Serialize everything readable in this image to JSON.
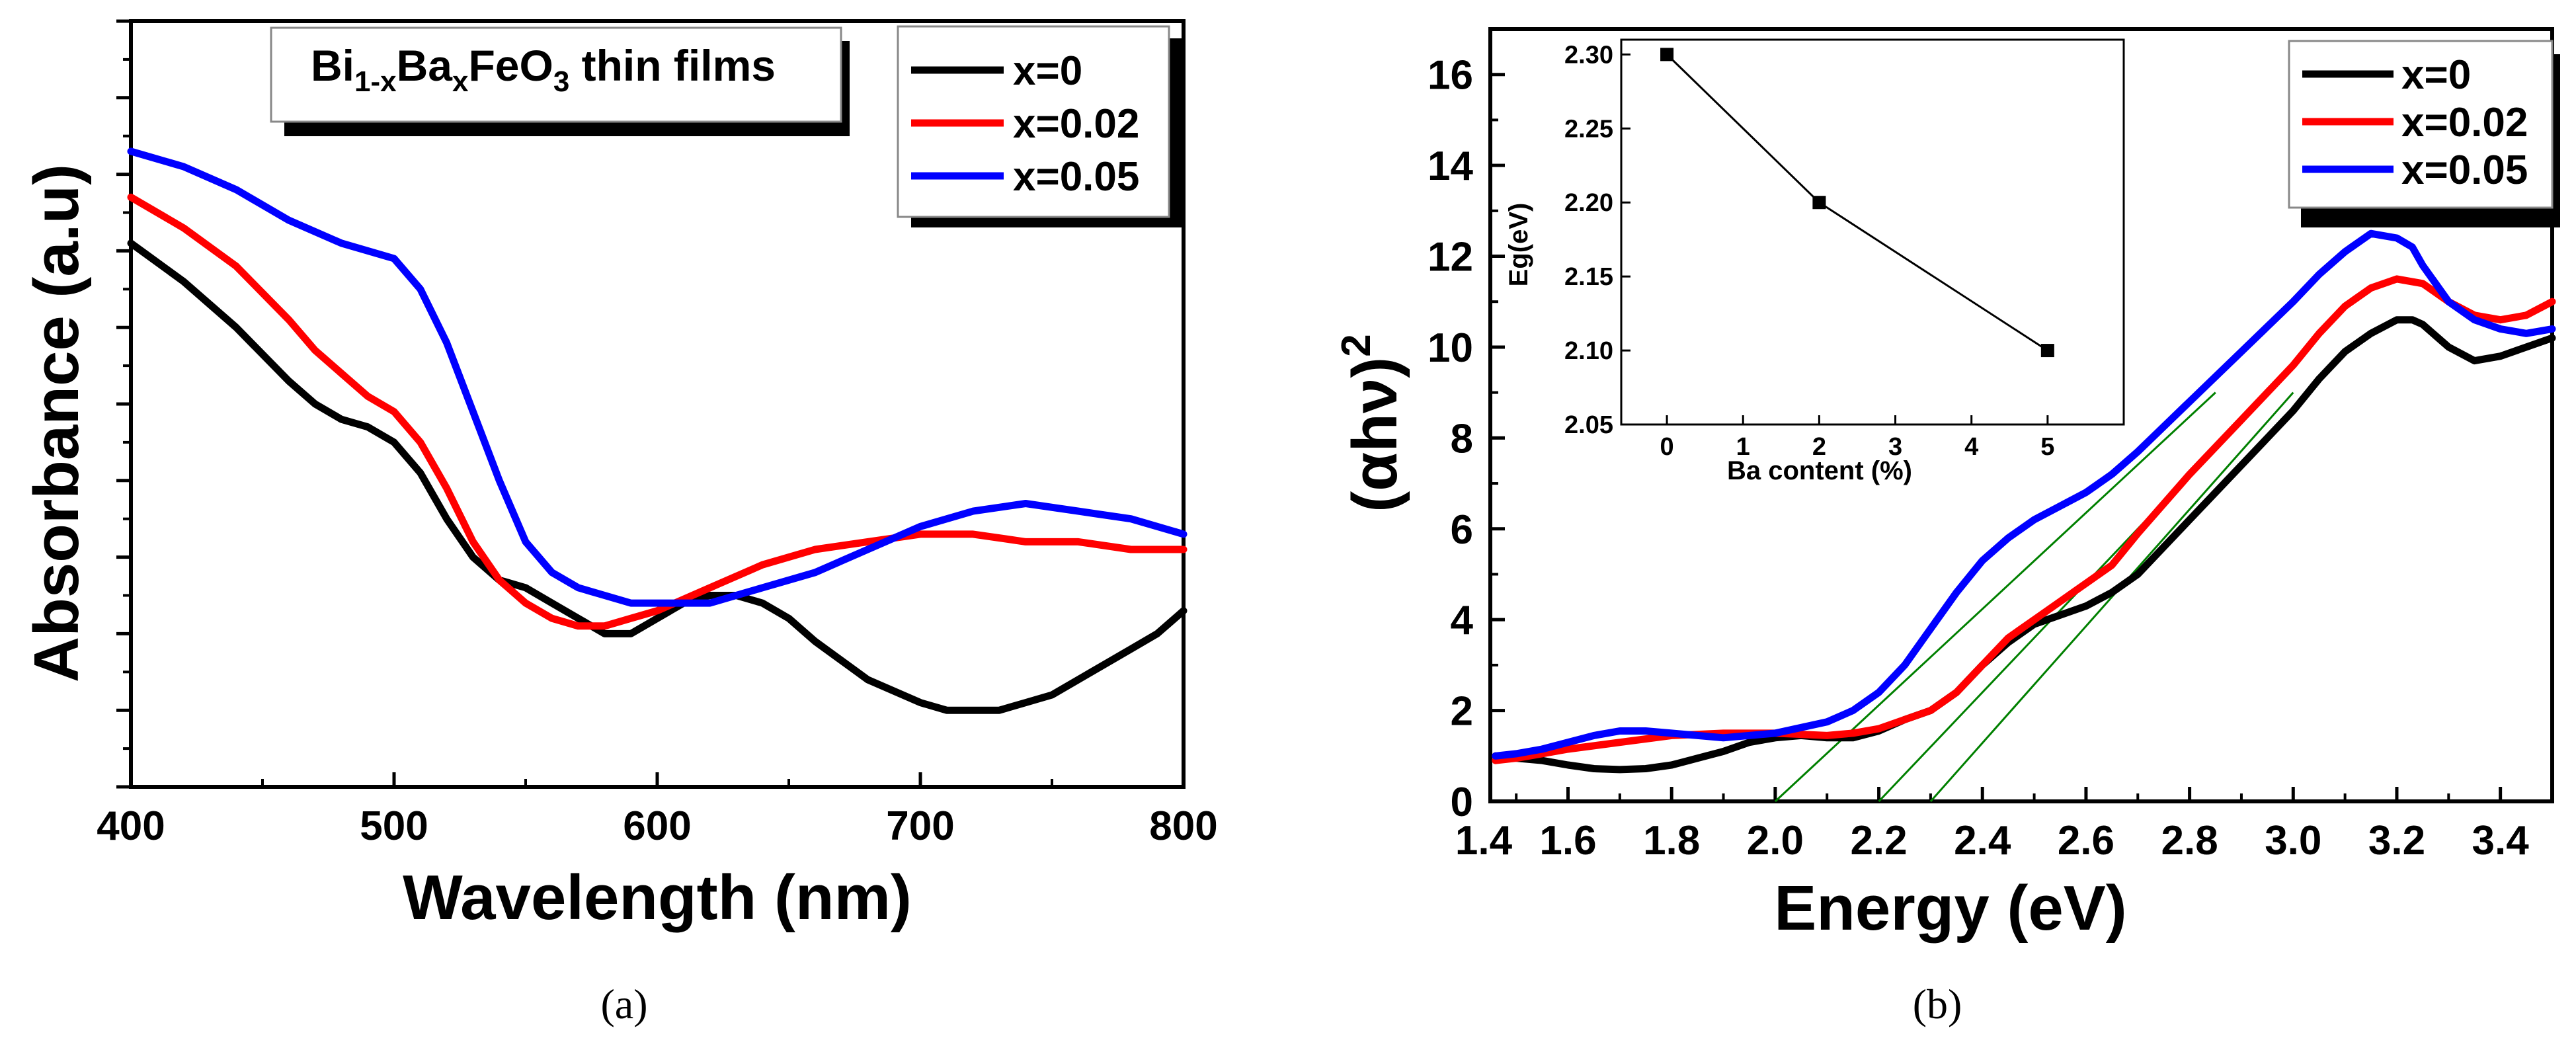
{
  "chart_data": [
    {
      "panel": "a",
      "type": "line",
      "caption": "(a)",
      "title_box": {
        "base": "Bi",
        "sub1": "1-x",
        "mid": "Ba",
        "sub2": "x",
        "tail": "FeO",
        "sub3": "3",
        "rest": " thin films"
      },
      "xlabel": "Wavelength (nm)",
      "ylabel": "Absorbance (a.u)",
      "xlim": [
        400,
        800
      ],
      "ylim": [
        0,
        10
      ],
      "xticks": [
        "400",
        "500",
        "600",
        "700",
        "800"
      ],
      "y_tick_labels": false,
      "legend_position": "top-right",
      "series": [
        {
          "name": "x=0",
          "color": "#000000",
          "x": [
            400,
            420,
            440,
            460,
            470,
            480,
            490,
            500,
            510,
            520,
            530,
            540,
            550,
            560,
            570,
            580,
            590,
            600,
            610,
            620,
            630,
            640,
            650,
            660,
            680,
            700,
            710,
            720,
            730,
            740,
            750,
            760,
            770,
            780,
            790,
            800
          ],
          "y": [
            7.1,
            6.6,
            6.0,
            5.3,
            5.0,
            4.8,
            4.7,
            4.5,
            4.1,
            3.5,
            3.0,
            2.7,
            2.6,
            2.4,
            2.2,
            2.0,
            2.0,
            2.2,
            2.4,
            2.5,
            2.5,
            2.4,
            2.2,
            1.9,
            1.4,
            1.1,
            1.0,
            1.0,
            1.0,
            1.1,
            1.2,
            1.4,
            1.6,
            1.8,
            2.0,
            2.3
          ]
        },
        {
          "name": "x=0.02",
          "color": "#ff0000",
          "x": [
            400,
            420,
            440,
            460,
            470,
            480,
            490,
            500,
            510,
            520,
            530,
            540,
            550,
            560,
            570,
            580,
            590,
            600,
            620,
            640,
            660,
            680,
            700,
            720,
            740,
            760,
            780,
            800
          ],
          "y": [
            7.7,
            7.3,
            6.8,
            6.1,
            5.7,
            5.4,
            5.1,
            4.9,
            4.5,
            3.9,
            3.2,
            2.7,
            2.4,
            2.2,
            2.1,
            2.1,
            2.2,
            2.3,
            2.6,
            2.9,
            3.1,
            3.2,
            3.3,
            3.3,
            3.2,
            3.2,
            3.1,
            3.1
          ]
        },
        {
          "name": "x=0.05",
          "color": "#0000ff",
          "x": [
            400,
            420,
            440,
            460,
            480,
            500,
            510,
            520,
            530,
            540,
            550,
            560,
            570,
            580,
            590,
            600,
            620,
            640,
            660,
            680,
            700,
            720,
            740,
            760,
            780,
            800
          ],
          "y": [
            8.3,
            8.1,
            7.8,
            7.4,
            7.1,
            6.9,
            6.5,
            5.8,
            4.9,
            4.0,
            3.2,
            2.8,
            2.6,
            2.5,
            2.4,
            2.4,
            2.4,
            2.6,
            2.8,
            3.1,
            3.4,
            3.6,
            3.7,
            3.6,
            3.5,
            3.3
          ]
        }
      ]
    },
    {
      "panel": "b",
      "type": "line",
      "caption": "(b)",
      "xlabel": "Energy (eV)",
      "ylabel_base": "(αhν)",
      "ylabel_sup": "2",
      "xlim": [
        1.45,
        3.5
      ],
      "ylim": [
        0,
        17
      ],
      "xticks": [
        "1.4",
        "1.6",
        "1.8",
        "2.0",
        "2.2",
        "2.4",
        "2.6",
        "2.8",
        "3.0",
        "3.2",
        "3.4"
      ],
      "yticks": [
        "0",
        "2",
        "4",
        "6",
        "8",
        "10",
        "12",
        "14",
        "16"
      ],
      "legend_position": "top-right",
      "series": [
        {
          "name": "x=0",
          "color": "#000000",
          "x": [
            1.46,
            1.5,
            1.55,
            1.6,
            1.65,
            1.7,
            1.75,
            1.8,
            1.85,
            1.9,
            1.95,
            2.0,
            2.05,
            2.1,
            2.15,
            2.2,
            2.25,
            2.3,
            2.35,
            2.4,
            2.45,
            2.5,
            2.55,
            2.6,
            2.65,
            2.7,
            2.8,
            2.9,
            3.0,
            3.05,
            3.1,
            3.15,
            3.2,
            3.23,
            3.25,
            3.3,
            3.35,
            3.4,
            3.45,
            3.5
          ],
          "y": [
            1.0,
            0.95,
            0.9,
            0.8,
            0.72,
            0.7,
            0.72,
            0.8,
            0.95,
            1.1,
            1.3,
            1.4,
            1.45,
            1.4,
            1.4,
            1.55,
            1.8,
            2.0,
            2.4,
            3.0,
            3.5,
            3.9,
            4.1,
            4.3,
            4.6,
            5.0,
            6.2,
            7.4,
            8.6,
            9.3,
            9.9,
            10.3,
            10.6,
            10.6,
            10.5,
            10.0,
            9.7,
            9.8,
            10.0,
            10.2
          ]
        },
        {
          "name": "x=0.02",
          "color": "#ff0000",
          "x": [
            1.46,
            1.5,
            1.55,
            1.6,
            1.7,
            1.8,
            1.9,
            2.0,
            2.1,
            2.15,
            2.2,
            2.25,
            2.3,
            2.35,
            2.4,
            2.45,
            2.5,
            2.55,
            2.6,
            2.65,
            2.7,
            2.8,
            2.9,
            3.0,
            3.05,
            3.1,
            3.15,
            3.2,
            3.25,
            3.3,
            3.35,
            3.4,
            3.45,
            3.5
          ],
          "y": [
            0.9,
            0.95,
            1.05,
            1.15,
            1.3,
            1.45,
            1.5,
            1.5,
            1.45,
            1.5,
            1.6,
            1.8,
            2.0,
            2.4,
            3.0,
            3.6,
            4.0,
            4.4,
            4.8,
            5.2,
            5.9,
            7.2,
            8.4,
            9.6,
            10.3,
            10.9,
            11.3,
            11.5,
            11.4,
            11.0,
            10.7,
            10.6,
            10.7,
            11.0
          ]
        },
        {
          "name": "x=0.05",
          "color": "#0000ff",
          "x": [
            1.46,
            1.5,
            1.55,
            1.6,
            1.65,
            1.7,
            1.75,
            1.8,
            1.9,
            2.0,
            2.1,
            2.15,
            2.2,
            2.25,
            2.3,
            2.35,
            2.4,
            2.45,
            2.5,
            2.55,
            2.6,
            2.65,
            2.7,
            2.8,
            2.9,
            3.0,
            3.05,
            3.1,
            3.15,
            3.2,
            3.23,
            3.25,
            3.3,
            3.35,
            3.4,
            3.45,
            3.5
          ],
          "y": [
            1.0,
            1.05,
            1.15,
            1.3,
            1.45,
            1.55,
            1.55,
            1.5,
            1.4,
            1.5,
            1.75,
            2.0,
            2.4,
            3.0,
            3.8,
            4.6,
            5.3,
            5.8,
            6.2,
            6.5,
            6.8,
            7.2,
            7.7,
            8.8,
            9.9,
            11.0,
            11.6,
            12.1,
            12.5,
            12.4,
            12.2,
            11.8,
            11.0,
            10.6,
            10.4,
            10.3,
            10.4
          ]
        }
      ],
      "tangent_lines": {
        "color": "#008000",
        "lines": [
          {
            "x1": 2.0,
            "y1": 0,
            "x2": 2.85,
            "y2": 9.0
          },
          {
            "x1": 2.2,
            "y1": 0,
            "x2": 2.95,
            "y2": 9.0
          },
          {
            "x1": 2.3,
            "y1": 0,
            "x2": 3.0,
            "y2": 9.0
          }
        ]
      },
      "inset": {
        "type": "line-scatter",
        "xlabel": "Ba content (%)",
        "ylabel": "Eg(eV)",
        "xlim": [
          -0.6,
          6.0
        ],
        "ylim": [
          2.05,
          2.31
        ],
        "xticks": [
          "0",
          "1",
          "2",
          "3",
          "4",
          "5"
        ],
        "yticks": [
          "2.05",
          "2.10",
          "2.15",
          "2.20",
          "2.25",
          "2.30"
        ],
        "x": [
          0,
          2,
          5
        ],
        "y": [
          2.3,
          2.2,
          2.1
        ]
      }
    }
  ]
}
